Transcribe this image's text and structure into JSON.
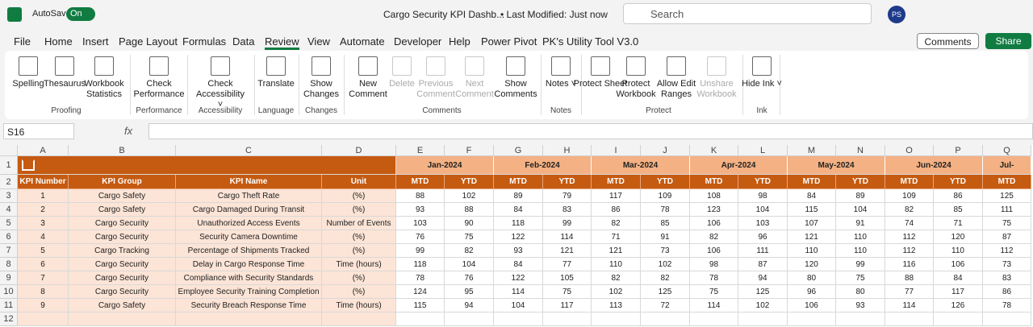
{
  "title_bar": {
    "autosave": "AutoSave",
    "toggle": "On",
    "file_name": "Cargo Security KPI Dashb...",
    "status": "• Last Modified: Just now",
    "search": "Search",
    "user_initials": "PS"
  },
  "menu_tabs": [
    "File",
    "Home",
    "Insert",
    "Page Layout",
    "Formulas",
    "Data",
    "Review",
    "View",
    "Automate",
    "Developer",
    "Help",
    "Power Pivot",
    "PK's Utility Tool V3.0"
  ],
  "menu_buttons": [
    "Comments",
    "Share"
  ],
  "ribbon": {
    "groups": [
      {
        "label": "Proofing",
        "buttons": [
          {
            "label": "Spelling"
          },
          {
            "label": "Thesaurus"
          },
          {
            "label": "Workbook Statistics"
          }
        ]
      },
      {
        "label": "Performance",
        "buttons": [
          {
            "label": "Check Performance"
          }
        ]
      },
      {
        "label": "Accessibility",
        "buttons": [
          {
            "label": "Check Accessibility ˅"
          }
        ]
      },
      {
        "label": "Language",
        "buttons": [
          {
            "label": "Translate"
          }
        ]
      },
      {
        "label": "Changes",
        "buttons": [
          {
            "label": "Show Changes"
          }
        ]
      },
      {
        "label": "Comments",
        "buttons": [
          {
            "label": "New Comment"
          },
          {
            "label": "Delete",
            "disabled": true
          },
          {
            "label": "Previous Comment",
            "disabled": true
          },
          {
            "label": "Next Comment",
            "disabled": true
          },
          {
            "label": "Show Comments"
          }
        ]
      },
      {
        "label": "Notes",
        "buttons": [
          {
            "label": "Notes ˅"
          }
        ]
      },
      {
        "label": "Protect",
        "buttons": [
          {
            "label": "Protect Sheet"
          },
          {
            "label": "Protect Workbook"
          },
          {
            "label": "Allow Edit Ranges"
          },
          {
            "label": "Unshare Workbook",
            "disabled": true
          }
        ]
      },
      {
        "label": "Ink",
        "buttons": [
          {
            "label": "Hide Ink ˅"
          }
        ]
      }
    ]
  },
  "formula_bar": {
    "name_box": "S16",
    "fx": "fx"
  },
  "sheet": {
    "column_headers": [
      "A",
      "B",
      "C",
      "D",
      "E",
      "F",
      "G",
      "H",
      "I",
      "J",
      "K",
      "L",
      "M",
      "N",
      "O",
      "P",
      "Q"
    ],
    "row_headers": [
      1,
      2,
      3,
      4,
      5,
      6,
      7,
      8,
      9,
      10,
      11,
      12
    ],
    "months": [
      "Jan-2024",
      "Feb-2024",
      "Mar-2024",
      "Apr-2024",
      "May-2024",
      "Jun-2024",
      "Jul-"
    ],
    "header_row": [
      "KPI Number",
      "KPI Group",
      "KPI Name",
      "Unit",
      "MTD",
      "YTD",
      "MTD",
      "YTD",
      "MTD",
      "YTD",
      "MTD",
      "YTD",
      "MTD",
      "YTD",
      "MTD",
      "YTD",
      "MTD"
    ],
    "rows": [
      [
        1,
        "Cargo Safety",
        "Cargo Theft Rate",
        "(%)",
        88,
        102,
        89,
        79,
        117,
        109,
        108,
        98,
        84,
        89,
        109,
        86,
        125
      ],
      [
        2,
        "Cargo Safety",
        "Cargo Damaged During Transit",
        "(%)",
        93,
        88,
        84,
        83,
        86,
        78,
        123,
        104,
        115,
        104,
        82,
        85,
        111
      ],
      [
        3,
        "Cargo Security",
        "Unauthorized Access Events",
        "Number of Events",
        103,
        90,
        118,
        99,
        82,
        85,
        106,
        103,
        107,
        91,
        74,
        71,
        75
      ],
      [
        4,
        "Cargo Security",
        "Security Camera Downtime",
        "(%)",
        76,
        75,
        122,
        114,
        71,
        91,
        82,
        96,
        121,
        110,
        112,
        120,
        87
      ],
      [
        5,
        "Cargo Tracking",
        "Percentage of Shipments Tracked",
        "(%)",
        99,
        82,
        93,
        121,
        121,
        73,
        106,
        111,
        110,
        110,
        112,
        110,
        112
      ],
      [
        6,
        "Cargo Security",
        "Delay in Cargo Response Time",
        "Time (hours)",
        118,
        104,
        84,
        77,
        110,
        102,
        98,
        87,
        120,
        99,
        116,
        106,
        73
      ],
      [
        7,
        "Cargo Security",
        "Compliance with Security Standards",
        "(%)",
        78,
        76,
        122,
        105,
        82,
        82,
        78,
        94,
        80,
        75,
        88,
        84,
        83
      ],
      [
        8,
        "Cargo Security",
        "Employee Security Training Completion",
        "(%)",
        124,
        95,
        114,
        75,
        102,
        125,
        75,
        125,
        96,
        80,
        77,
        117,
        86
      ],
      [
        9,
        "Cargo Safety",
        "Security Breach Response Time",
        "Time (hours)",
        115,
        94,
        104,
        117,
        113,
        72,
        114,
        102,
        106,
        93,
        114,
        126,
        78
      ]
    ]
  }
}
